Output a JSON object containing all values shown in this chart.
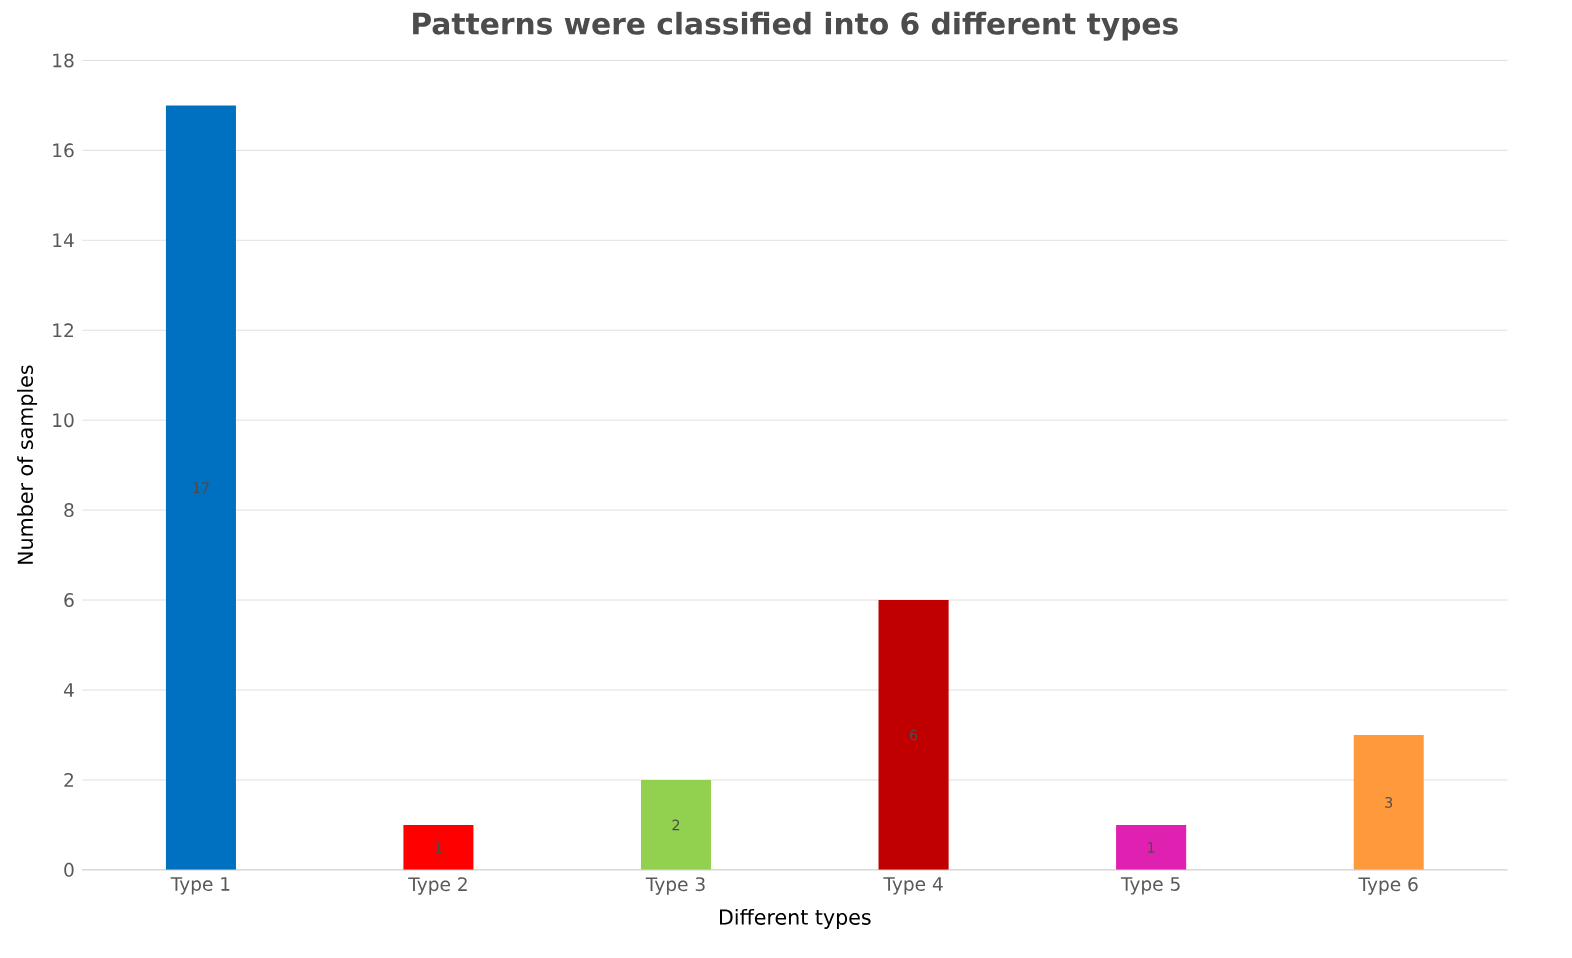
{
  "chart_data": {
    "type": "bar",
    "title": "Patterns were classified into 6 different types",
    "xlabel": "Different types",
    "ylabel": "Number of samples",
    "categories": [
      "Type 1",
      "Type 2",
      "Type 3",
      "Type 4",
      "Type 5",
      "Type 6"
    ],
    "values": [
      17,
      1,
      2,
      6,
      1,
      3
    ],
    "colors": [
      "#0070c0",
      "#ff0000",
      "#92d050",
      "#c00000",
      "#e020b0",
      "#ff9a3c"
    ],
    "ylim": [
      0,
      18
    ],
    "yticks": [
      0,
      2,
      4,
      6,
      8,
      10,
      12,
      14,
      16,
      18
    ],
    "grid": "y",
    "data_labels": true
  }
}
